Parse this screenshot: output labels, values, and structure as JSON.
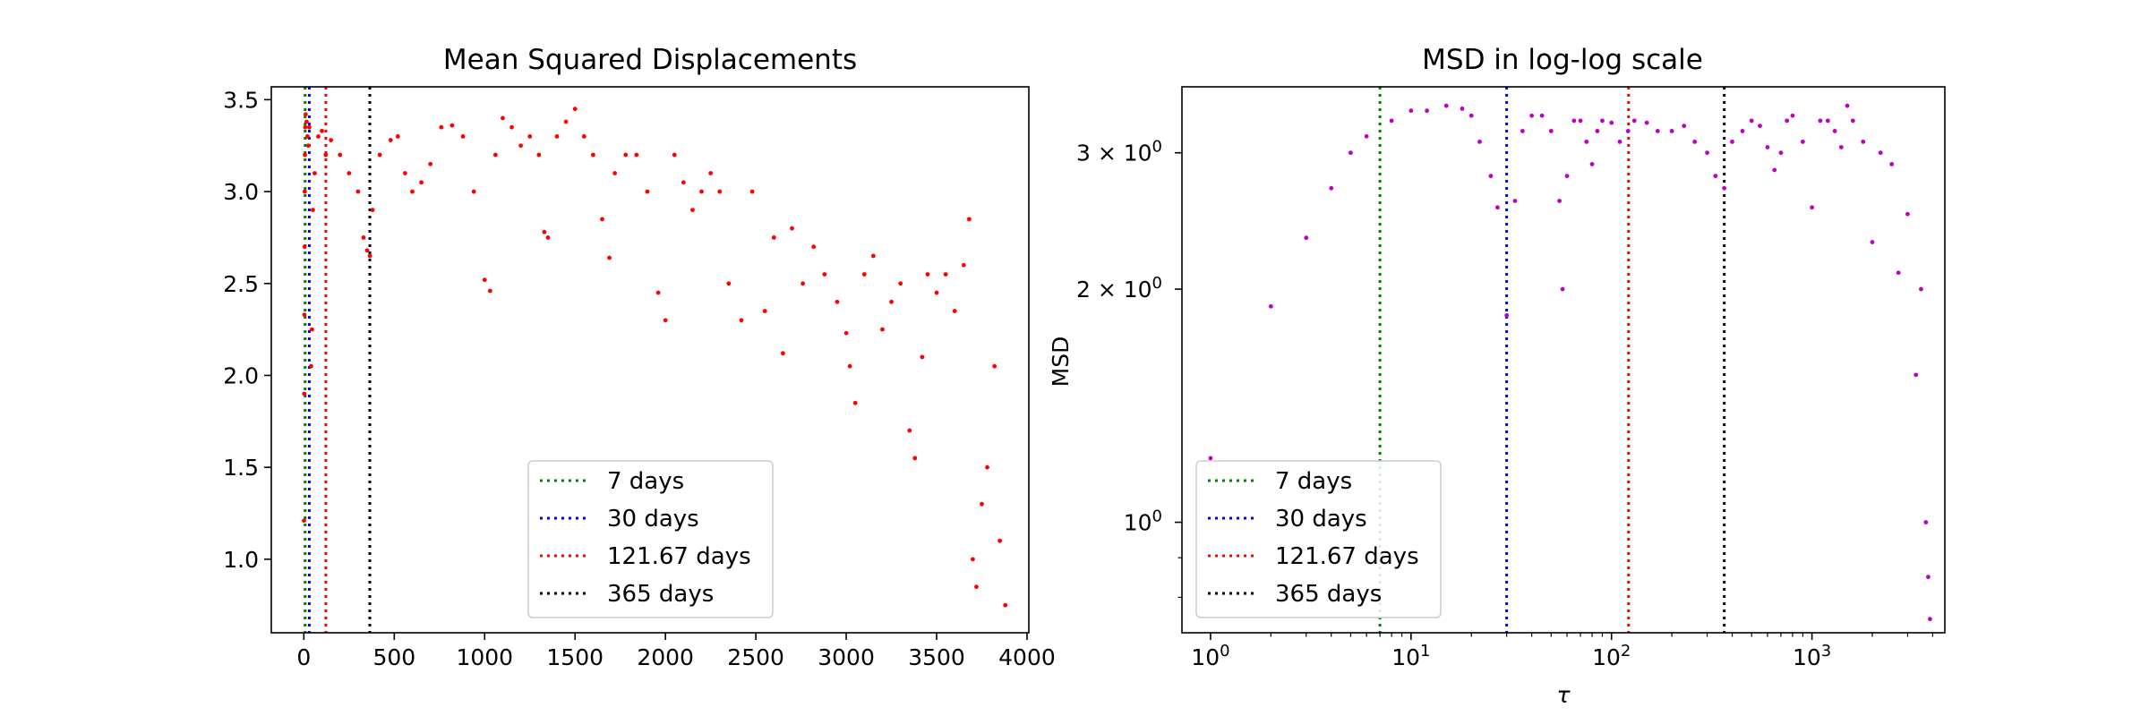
{
  "charts": [
    {
      "title": "Mean Squared Displacements",
      "scale": "linear",
      "xlim": [
        -180,
        4010
      ],
      "ylim": [
        0.6,
        3.57
      ],
      "x_ticks": [
        {
          "value": 0,
          "label": "0"
        },
        {
          "value": 500,
          "label": "500"
        },
        {
          "value": 1000,
          "label": "1000"
        },
        {
          "value": 1500,
          "label": "1500"
        },
        {
          "value": 2000,
          "label": "2000"
        },
        {
          "value": 2500,
          "label": "2500"
        },
        {
          "value": 3000,
          "label": "3000"
        },
        {
          "value": 3500,
          "label": "3500"
        },
        {
          "value": 4000,
          "label": "4000"
        }
      ],
      "y_ticks": [
        {
          "value": 1.0,
          "label": "1.0"
        },
        {
          "value": 1.5,
          "label": "1.5"
        },
        {
          "value": 2.0,
          "label": "2.0"
        },
        {
          "value": 2.5,
          "label": "2.5"
        },
        {
          "value": 3.0,
          "label": "3.0"
        },
        {
          "value": 3.5,
          "label": "3.5"
        }
      ],
      "xlabel": "",
      "ylabel": "",
      "point_color": "#ff0000"
    },
    {
      "title": "MSD in log-log scale",
      "scale": "log",
      "xlim": [
        0.72,
        4600
      ],
      "ylim": [
        0.72,
        3.65
      ],
      "x_ticks": [
        {
          "value": 1,
          "base": "10",
          "exp": "0"
        },
        {
          "value": 10,
          "base": "10",
          "exp": "1"
        },
        {
          "value": 100,
          "base": "10",
          "exp": "2"
        },
        {
          "value": 1000,
          "base": "10",
          "exp": "3"
        }
      ],
      "y_ticks": [
        {
          "value": 1,
          "label": "10",
          "exp": "0"
        },
        {
          "value": 2,
          "label": "2 × 10",
          "exp": "0"
        },
        {
          "value": 3,
          "label": "3 × 10",
          "exp": "0"
        }
      ],
      "xlabel": "τ",
      "ylabel": "MSD",
      "point_color": "#bf00bf"
    }
  ],
  "legend": [
    {
      "label": "7 days",
      "color": "#008000"
    },
    {
      "label": "30 days",
      "color": "#0000ff"
    },
    {
      "label": "121.67 days",
      "color": "#ff0000"
    },
    {
      "label": "365 days",
      "color": "#000000"
    }
  ],
  "chart_data": [
    {
      "type": "scatter",
      "title": "Mean Squared Displacements",
      "xlabel": "",
      "ylabel": "",
      "xlim": [
        -180,
        4010
      ],
      "ylim": [
        0.6,
        3.57
      ],
      "vlines": [
        {
          "x": 7,
          "label": "7 days",
          "color": "#008000",
          "style": "dotted"
        },
        {
          "x": 30,
          "label": "30 days",
          "color": "#0000ff",
          "style": "dotted"
        },
        {
          "x": 121.67,
          "label": "121.67 days",
          "color": "#ff0000",
          "style": "dotted"
        },
        {
          "x": 365,
          "label": "365 days",
          "color": "#000000",
          "style": "dotted"
        }
      ],
      "series": [
        {
          "color": "#ff0000",
          "points": [
            [
              1,
              1.21
            ],
            [
              2,
              1.9
            ],
            [
              3,
              2.33
            ],
            [
              4,
              2.7
            ],
            [
              5,
              3.0
            ],
            [
              6,
              3.2
            ],
            [
              8,
              3.35
            ],
            [
              10,
              3.42
            ],
            [
              15,
              3.38
            ],
            [
              20,
              3.3
            ],
            [
              25,
              3.25
            ],
            [
              30,
              3.35
            ],
            [
              40,
              2.05
            ],
            [
              45,
              2.25
            ],
            [
              50,
              2.9
            ],
            [
              60,
              3.1
            ],
            [
              80,
              3.3
            ],
            [
              100,
              3.33
            ],
            [
              121,
              3.2
            ],
            [
              150,
              3.28
            ],
            [
              200,
              3.2
            ],
            [
              250,
              3.1
            ],
            [
              300,
              3.0
            ],
            [
              330,
              2.75
            ],
            [
              350,
              2.68
            ],
            [
              365,
              2.65
            ],
            [
              380,
              2.9
            ],
            [
              420,
              3.2
            ],
            [
              480,
              3.28
            ],
            [
              520,
              3.3
            ],
            [
              560,
              3.1
            ],
            [
              600,
              3.0
            ],
            [
              650,
              3.05
            ],
            [
              700,
              3.15
            ],
            [
              760,
              3.35
            ],
            [
              820,
              3.36
            ],
            [
              880,
              3.3
            ],
            [
              940,
              3.0
            ],
            [
              1000,
              2.52
            ],
            [
              1030,
              2.46
            ],
            [
              1060,
              3.2
            ],
            [
              1100,
              3.4
            ],
            [
              1150,
              3.35
            ],
            [
              1200,
              3.25
            ],
            [
              1250,
              3.3
            ],
            [
              1300,
              3.2
            ],
            [
              1330,
              2.78
            ],
            [
              1350,
              2.75
            ],
            [
              1400,
              3.3
            ],
            [
              1450,
              3.38
            ],
            [
              1500,
              3.45
            ],
            [
              1550,
              3.3
            ],
            [
              1600,
              3.2
            ],
            [
              1650,
              2.85
            ],
            [
              1690,
              2.64
            ],
            [
              1720,
              3.1
            ],
            [
              1780,
              3.2
            ],
            [
              1840,
              3.2
            ],
            [
              1900,
              3.0
            ],
            [
              1960,
              2.45
            ],
            [
              2000,
              2.3
            ],
            [
              2050,
              3.2
            ],
            [
              2100,
              3.05
            ],
            [
              2150,
              2.9
            ],
            [
              2200,
              3.0
            ],
            [
              2250,
              3.1
            ],
            [
              2300,
              3.0
            ],
            [
              2350,
              2.5
            ],
            [
              2420,
              2.3
            ],
            [
              2480,
              3.0
            ],
            [
              2550,
              2.35
            ],
            [
              2600,
              2.75
            ],
            [
              2650,
              2.12
            ],
            [
              2700,
              2.8
            ],
            [
              2760,
              2.5
            ],
            [
              2820,
              2.7
            ],
            [
              2880,
              2.55
            ],
            [
              2950,
              2.4
            ],
            [
              3000,
              2.23
            ],
            [
              3020,
              2.05
            ],
            [
              3050,
              1.85
            ],
            [
              3100,
              2.55
            ],
            [
              3150,
              2.65
            ],
            [
              3200,
              2.25
            ],
            [
              3250,
              2.4
            ],
            [
              3300,
              2.5
            ],
            [
              3350,
              1.7
            ],
            [
              3380,
              1.55
            ],
            [
              3420,
              2.1
            ],
            [
              3450,
              2.55
            ],
            [
              3500,
              2.45
            ],
            [
              3550,
              2.55
            ],
            [
              3600,
              2.35
            ],
            [
              3650,
              2.6
            ],
            [
              3680,
              2.85
            ],
            [
              3700,
              1.0
            ],
            [
              3720,
              0.85
            ],
            [
              3750,
              1.3
            ],
            [
              3780,
              1.5
            ],
            [
              3820,
              2.05
            ],
            [
              3850,
              1.1
            ],
            [
              3880,
              0.75
            ]
          ]
        }
      ]
    },
    {
      "type": "scatter",
      "title": "MSD in log-log scale",
      "xlabel": "τ",
      "ylabel": "MSD",
      "x_scale": "log",
      "y_scale": "log",
      "xlim": [
        0.72,
        4600
      ],
      "ylim": [
        0.72,
        3.65
      ],
      "vlines": [
        {
          "x": 7,
          "label": "7 days",
          "color": "#008000",
          "style": "dotted"
        },
        {
          "x": 30,
          "label": "30 days",
          "color": "#0000ff",
          "style": "dotted"
        },
        {
          "x": 121.67,
          "label": "121.67 days",
          "color": "#ff0000",
          "style": "dotted"
        },
        {
          "x": 365,
          "label": "365 days",
          "color": "#000000",
          "style": "dotted"
        }
      ],
      "series": [
        {
          "color": "#bf00bf",
          "points": [
            [
              1,
              1.21
            ],
            [
              2,
              1.9
            ],
            [
              3,
              2.33
            ],
            [
              4,
              2.7
            ],
            [
              5,
              3.0
            ],
            [
              6,
              3.15
            ],
            [
              8,
              3.3
            ],
            [
              10,
              3.4
            ],
            [
              12,
              3.4
            ],
            [
              15,
              3.45
            ],
            [
              18,
              3.42
            ],
            [
              20,
              3.35
            ],
            [
              22,
              3.1
            ],
            [
              25,
              2.8
            ],
            [
              27,
              2.55
            ],
            [
              30,
              1.85
            ],
            [
              33,
              2.6
            ],
            [
              36,
              3.2
            ],
            [
              40,
              3.35
            ],
            [
              45,
              3.35
            ],
            [
              50,
              3.2
            ],
            [
              55,
              2.6
            ],
            [
              57,
              2.0
            ],
            [
              60,
              2.8
            ],
            [
              65,
              3.3
            ],
            [
              70,
              3.3
            ],
            [
              75,
              3.1
            ],
            [
              80,
              2.9
            ],
            [
              85,
              3.2
            ],
            [
              90,
              3.3
            ],
            [
              100,
              3.28
            ],
            [
              110,
              3.1
            ],
            [
              121,
              3.2
            ],
            [
              130,
              3.3
            ],
            [
              150,
              3.28
            ],
            [
              170,
              3.2
            ],
            [
              200,
              3.2
            ],
            [
              230,
              3.25
            ],
            [
              260,
              3.1
            ],
            [
              300,
              3.0
            ],
            [
              330,
              2.8
            ],
            [
              365,
              2.7
            ],
            [
              400,
              3.1
            ],
            [
              450,
              3.2
            ],
            [
              500,
              3.3
            ],
            [
              550,
              3.25
            ],
            [
              600,
              3.05
            ],
            [
              650,
              2.85
            ],
            [
              700,
              3.0
            ],
            [
              750,
              3.3
            ],
            [
              800,
              3.35
            ],
            [
              900,
              3.1
            ],
            [
              1000,
              2.55
            ],
            [
              1100,
              3.3
            ],
            [
              1200,
              3.3
            ],
            [
              1300,
              3.2
            ],
            [
              1400,
              3.05
            ],
            [
              1500,
              3.45
            ],
            [
              1600,
              3.3
            ],
            [
              1800,
              3.1
            ],
            [
              2000,
              2.3
            ],
            [
              2200,
              3.0
            ],
            [
              2500,
              2.9
            ],
            [
              2700,
              2.1
            ],
            [
              3000,
              2.5
            ],
            [
              3300,
              1.55
            ],
            [
              3500,
              2.0
            ],
            [
              3700,
              1.0
            ],
            [
              3800,
              0.85
            ],
            [
              3880,
              0.75
            ]
          ]
        }
      ]
    }
  ]
}
